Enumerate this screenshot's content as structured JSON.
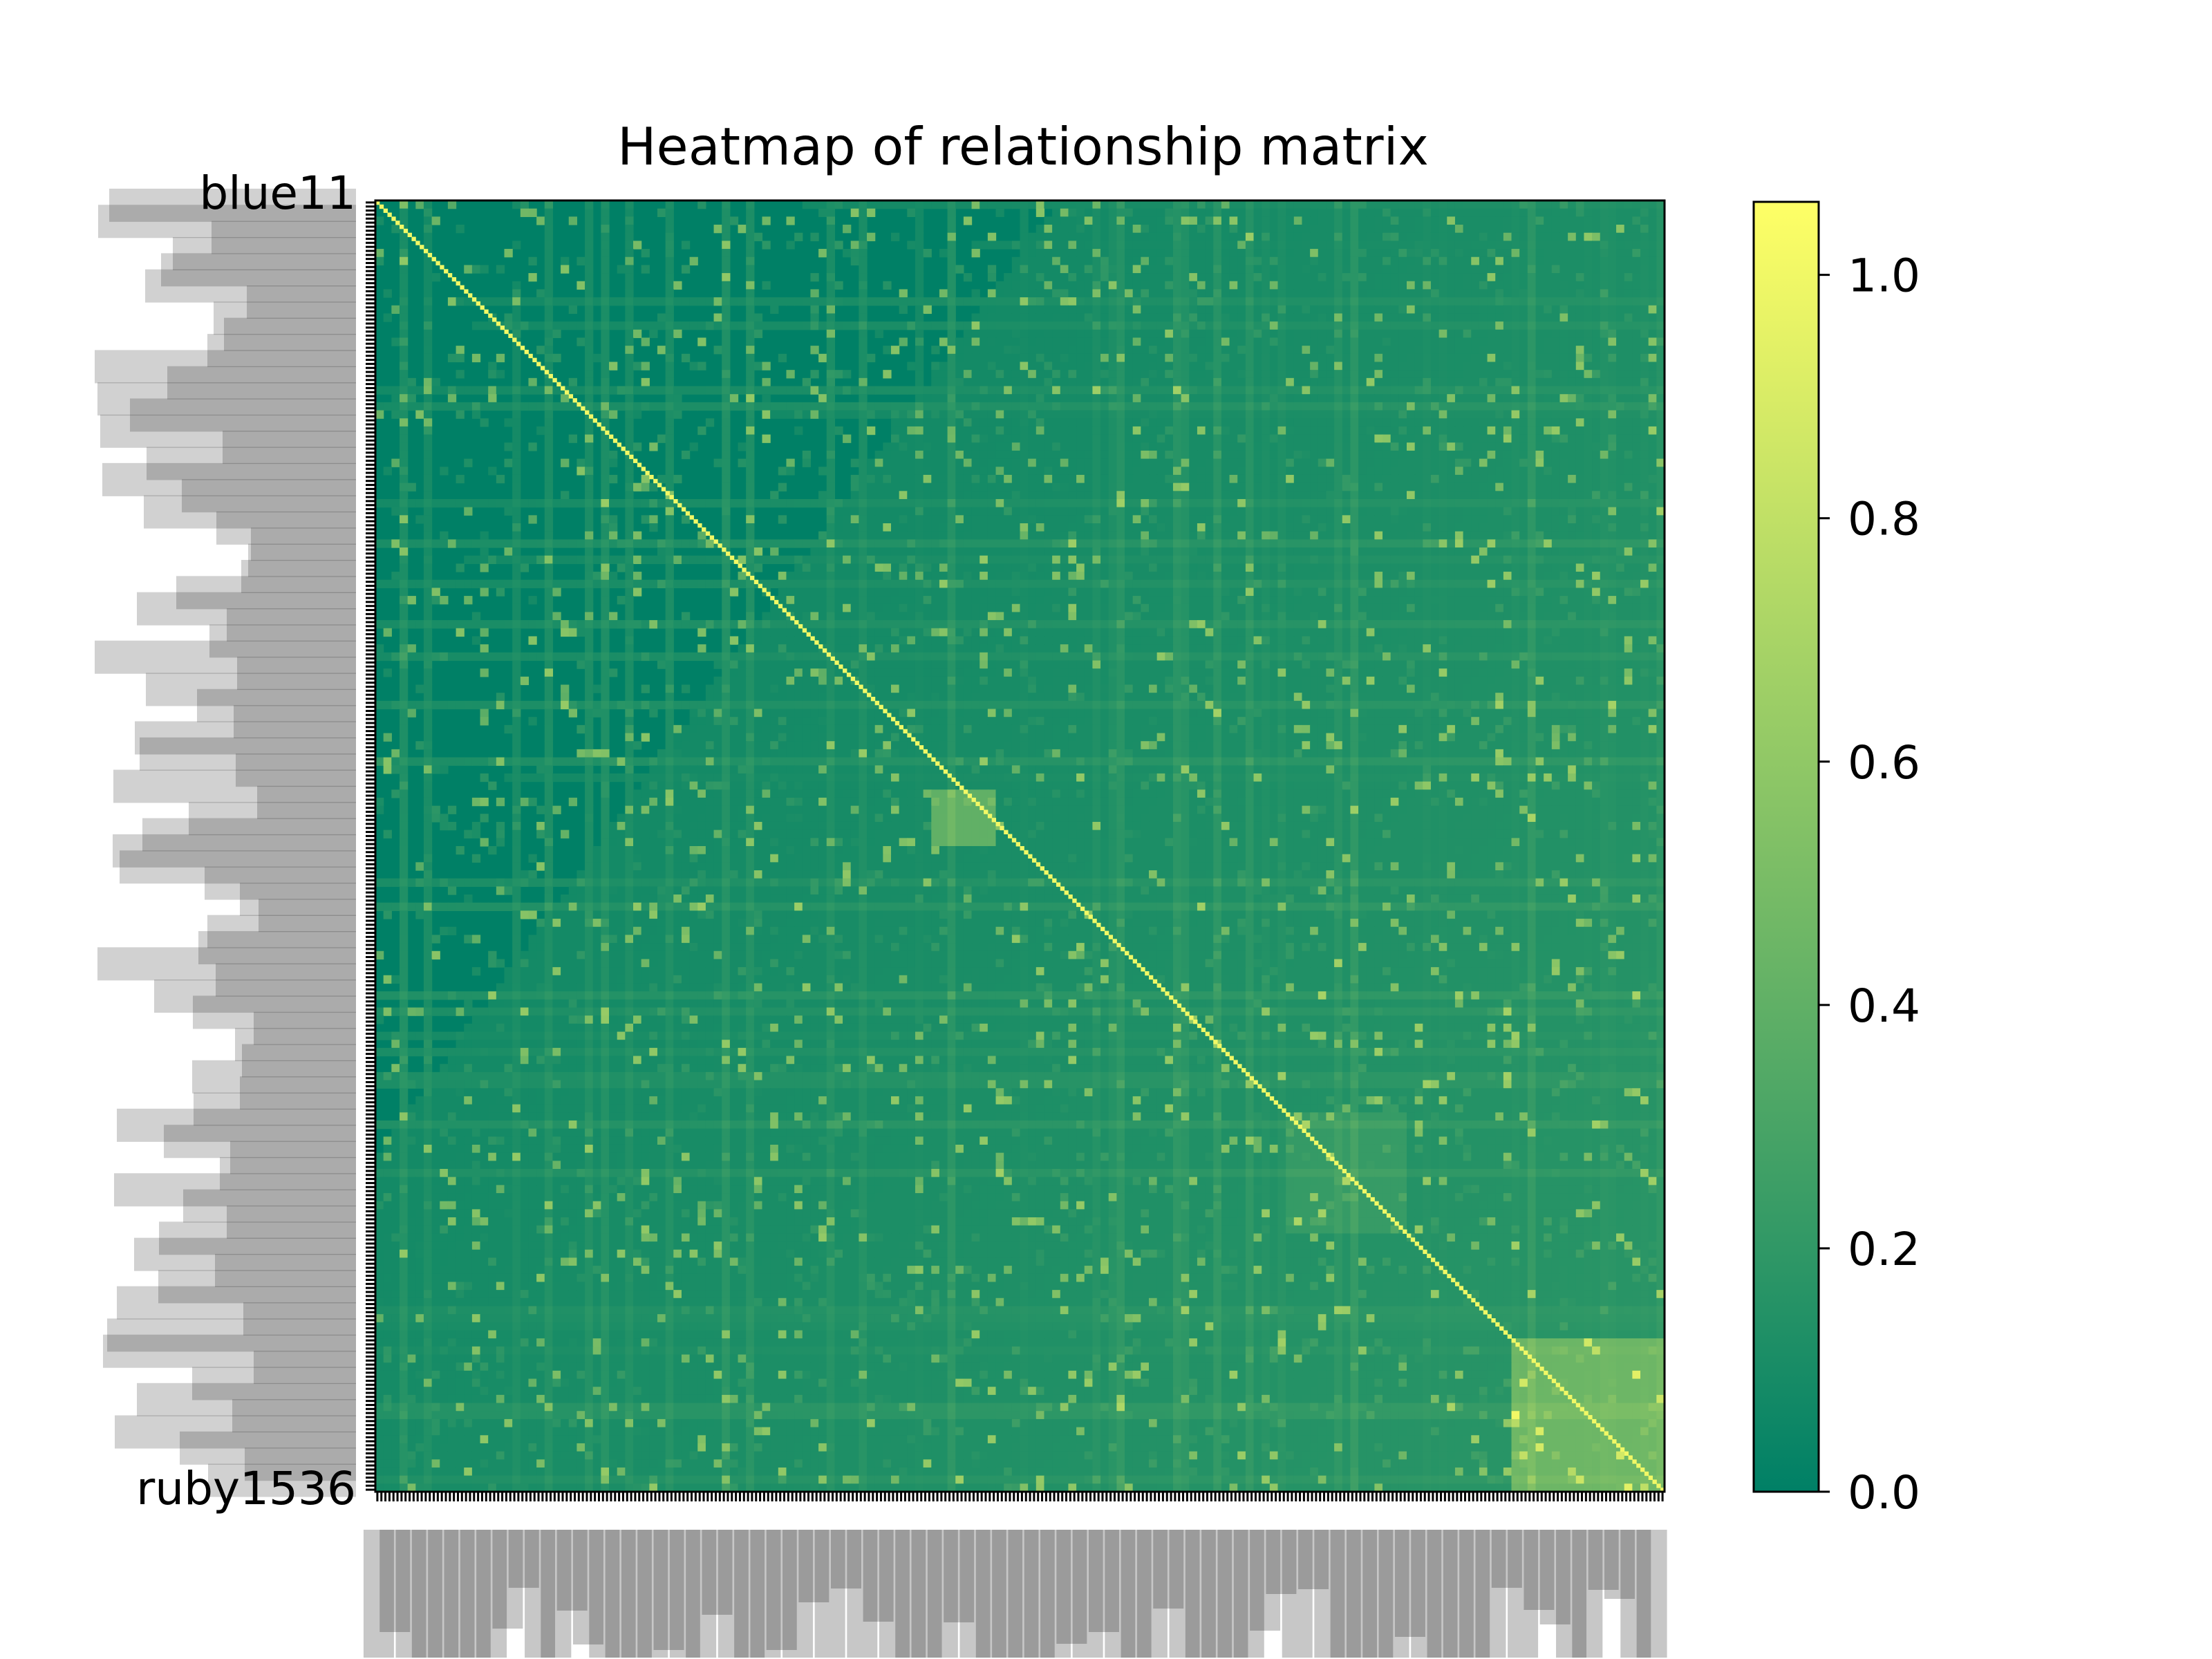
{
  "colors": {
    "low": "#008066",
    "high": "#ffff66",
    "axis": "#000000",
    "background": "#ffffff"
  },
  "chart_data": {
    "type": "heatmap",
    "title": "Heatmap of relationship matrix",
    "colormap": "summer",
    "color_range": [
      0.0,
      1.06
    ],
    "matrix_size": 320,
    "diagonal_value": 1.0,
    "colorbar": {
      "ticks": [
        0.0,
        0.2,
        0.4,
        0.6,
        0.8,
        1.0
      ],
      "tick_labels": [
        "0.0",
        "0.2",
        "0.4",
        "0.6",
        "0.8",
        "1.0"
      ],
      "placement": "right"
    },
    "row_labels_legible": [
      "blue11",
      "ruby1536"
    ],
    "labels_overlapping": true,
    "x_tick_labels_rotated": 90,
    "grid": false
  }
}
